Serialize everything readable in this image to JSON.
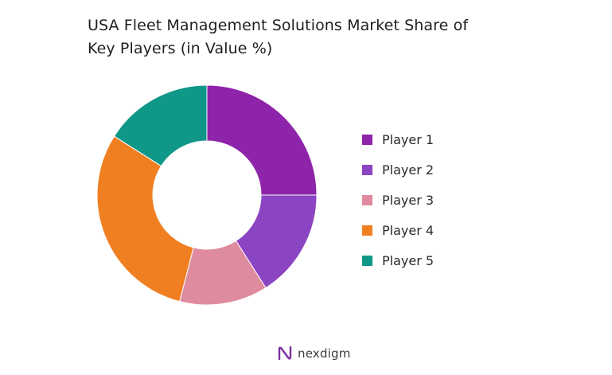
{
  "chart_data": {
    "type": "pie",
    "donut": true,
    "title_lines": [
      "USA Fleet Management Solutions Market Share of",
      "Key Players (in Value %)"
    ],
    "categories": [
      "Player 1",
      "Player 2",
      "Player 3",
      "Player 4",
      "Player 5"
    ],
    "values": [
      25,
      16,
      13,
      30,
      16
    ],
    "colors": [
      "#8e24aa",
      "#8b44c2",
      "#de8b9f",
      "#f07f22",
      "#0f9788"
    ],
    "legend_position": "right"
  },
  "brand": {
    "name": "nexdigm",
    "icon": "nexdigm-logo-icon",
    "color": "#7b2fa0"
  }
}
